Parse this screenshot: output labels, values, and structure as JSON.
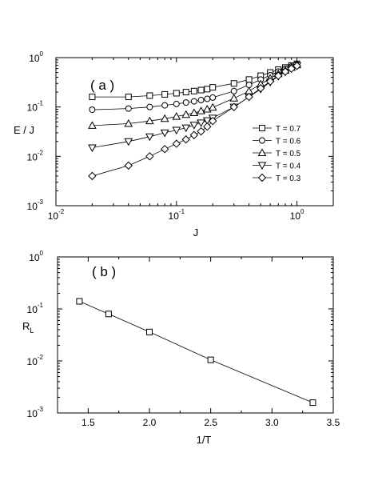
{
  "chart_data": [
    {
      "type": "scatter",
      "panel_label": "( a )",
      "xlabel": "J",
      "ylabel": "E / J",
      "xscale": "log",
      "yscale": "log",
      "xlim": [
        0.01,
        2
      ],
      "ylim": [
        0.001,
        1
      ],
      "x_ticks": [
        {
          "base": "10",
          "exp": "-2"
        },
        {
          "base": "10",
          "exp": "-1"
        },
        {
          "base": "10",
          "exp": "0"
        }
      ],
      "y_ticks": [
        {
          "base": "10",
          "exp": "-3"
        },
        {
          "base": "10",
          "exp": "-2"
        },
        {
          "base": "10",
          "exp": "-1"
        },
        {
          "base": "10",
          "exp": "0"
        }
      ],
      "legend_position": "right",
      "grid": false,
      "series": [
        {
          "name": "T = 0.7",
          "marker": "square",
          "x": [
            0.02,
            0.04,
            0.06,
            0.08,
            0.1,
            0.12,
            0.14,
            0.16,
            0.18,
            0.2,
            0.3,
            0.4,
            0.5,
            0.6,
            0.7,
            0.8,
            0.9,
            1.0
          ],
          "y": [
            0.16,
            0.16,
            0.17,
            0.18,
            0.19,
            0.2,
            0.21,
            0.22,
            0.23,
            0.25,
            0.3,
            0.36,
            0.43,
            0.5,
            0.57,
            0.63,
            0.69,
            0.75
          ]
        },
        {
          "name": "T = 0.6",
          "marker": "circle",
          "x": [
            0.02,
            0.04,
            0.06,
            0.08,
            0.1,
            0.12,
            0.14,
            0.16,
            0.18,
            0.2,
            0.3,
            0.4,
            0.5,
            0.6,
            0.7,
            0.8,
            0.9,
            1.0
          ],
          "y": [
            0.088,
            0.093,
            0.1,
            0.108,
            0.115,
            0.123,
            0.13,
            0.138,
            0.146,
            0.155,
            0.21,
            0.28,
            0.36,
            0.44,
            0.52,
            0.59,
            0.66,
            0.73
          ]
        },
        {
          "name": "T = 0.5",
          "marker": "triangle-up",
          "x": [
            0.02,
            0.04,
            0.06,
            0.08,
            0.1,
            0.12,
            0.14,
            0.16,
            0.18,
            0.2,
            0.3,
            0.4,
            0.5,
            0.6,
            0.7,
            0.8,
            0.9,
            1.0
          ],
          "y": [
            0.042,
            0.046,
            0.052,
            0.058,
            0.064,
            0.07,
            0.076,
            0.083,
            0.09,
            0.098,
            0.15,
            0.21,
            0.29,
            0.38,
            0.47,
            0.55,
            0.63,
            0.71
          ]
        },
        {
          "name": "T = 0.4",
          "marker": "triangle-down",
          "x": [
            0.02,
            0.04,
            0.06,
            0.08,
            0.1,
            0.12,
            0.14,
            0.16,
            0.18,
            0.2,
            0.3,
            0.4,
            0.5,
            0.6,
            0.7,
            0.8,
            0.9,
            1.0
          ],
          "y": [
            0.015,
            0.02,
            0.025,
            0.03,
            0.034,
            0.038,
            0.043,
            0.048,
            0.053,
            0.06,
            0.1,
            0.16,
            0.23,
            0.32,
            0.42,
            0.51,
            0.6,
            0.69
          ]
        },
        {
          "name": "T = 0.3",
          "marker": "diamond",
          "x": [
            0.02,
            0.04,
            0.06,
            0.08,
            0.1,
            0.12,
            0.14,
            0.16,
            0.18,
            0.2,
            0.3,
            0.4,
            0.5,
            0.6,
            0.7,
            0.8,
            0.9,
            1.0
          ],
          "y": [
            0.004,
            0.0065,
            0.01,
            0.014,
            0.018,
            0.022,
            0.027,
            0.032,
            0.04,
            0.052,
            0.1,
            0.16,
            0.24,
            0.33,
            0.43,
            0.52,
            0.6,
            0.68
          ]
        }
      ]
    },
    {
      "type": "line",
      "panel_label": "( b )",
      "xlabel": "1/T",
      "ylabel": "R",
      "ylabel_subscript": "L",
      "xscale": "linear",
      "yscale": "log",
      "xlim": [
        1.25,
        3.5
      ],
      "ylim": [
        0.001,
        1
      ],
      "x_ticks": [
        "1.5",
        "2.0",
        "2.5",
        "3.0",
        "3.5"
      ],
      "y_ticks": [
        {
          "base": "10",
          "exp": "-3"
        },
        {
          "base": "10",
          "exp": "-2"
        },
        {
          "base": "10",
          "exp": "-1"
        },
        {
          "base": "10",
          "exp": "0"
        }
      ],
      "grid": false,
      "series": [
        {
          "marker": "square",
          "x": [
            1.4286,
            1.6667,
            2.0,
            2.5,
            3.3333
          ],
          "y": [
            0.14,
            0.08,
            0.036,
            0.0105,
            0.00158
          ]
        }
      ]
    }
  ]
}
